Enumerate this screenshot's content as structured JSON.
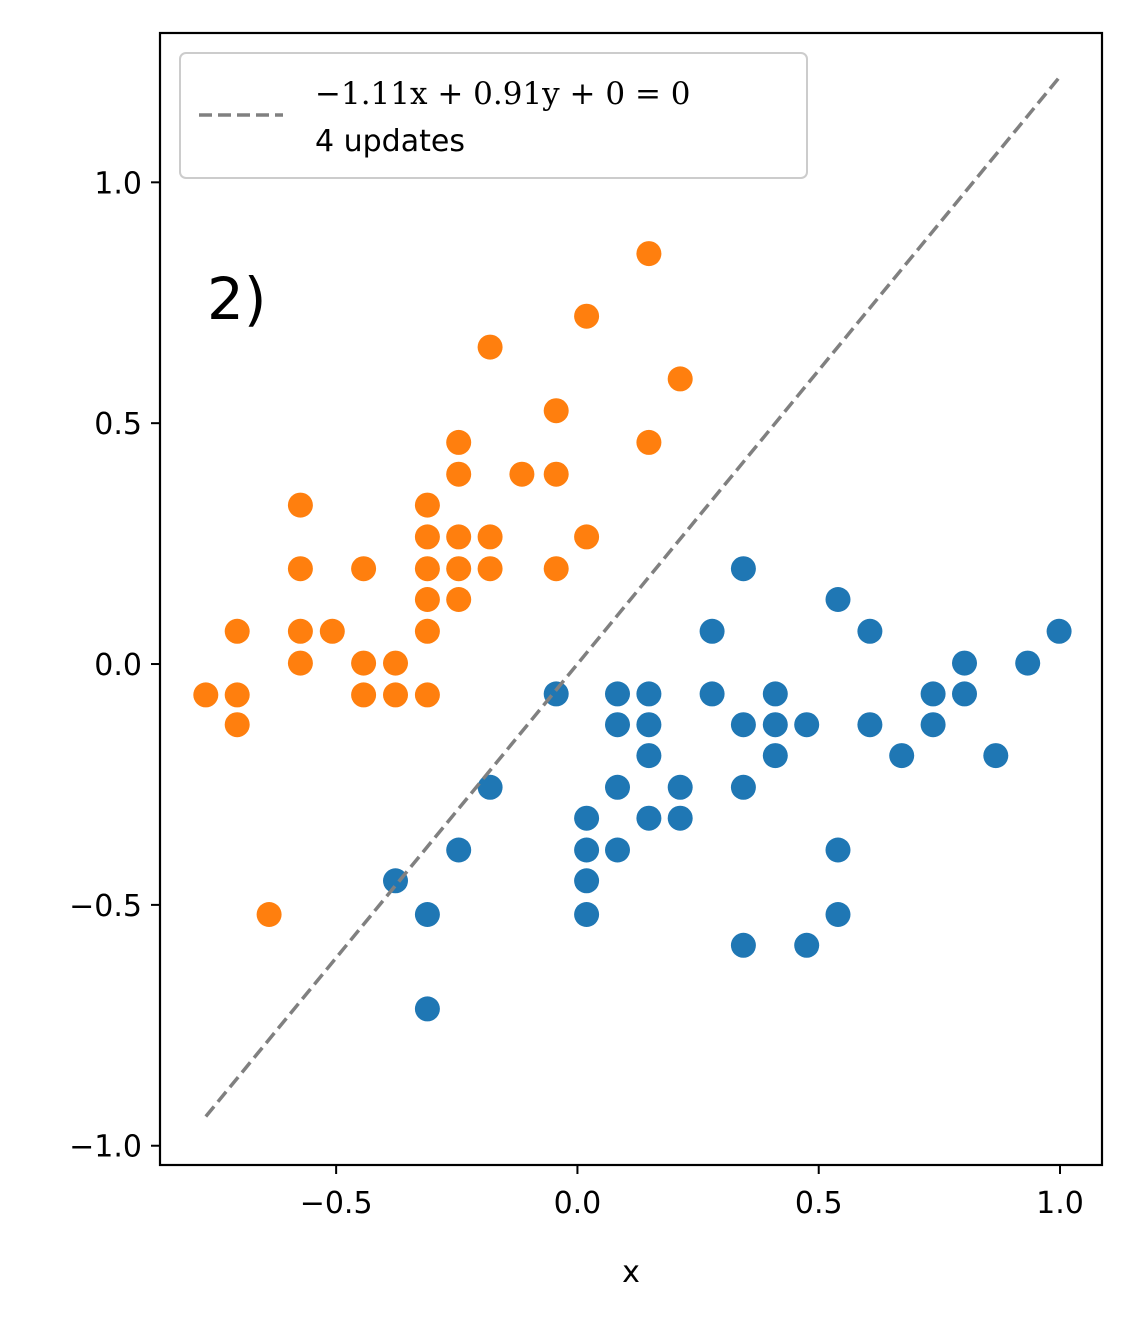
{
  "chart_data": {
    "type": "scatter",
    "title": "",
    "xlabel": "x",
    "ylabel": "",
    "xlim": [
      -0.865,
      1.087
    ],
    "ylim": [
      -1.04,
      1.31
    ],
    "xticks": [
      -0.5,
      0.0,
      0.5,
      1.0
    ],
    "yticks": [
      -1.0,
      -0.5,
      0.0,
      0.5,
      1.0
    ],
    "xtick_labels": [
      "−0.5",
      "0.0",
      "0.5",
      "1.0"
    ],
    "ytick_labels": [
      "−1.0",
      "−0.5",
      "0.0",
      "0.5",
      "1.0"
    ],
    "grid": false,
    "legend_position": "top-left",
    "annotation": "2)",
    "colors": {
      "orange": "#ff7f0e",
      "blue": "#1f77b4",
      "line": "#808080"
    },
    "series": [
      {
        "color": "orange",
        "points": [
          [
            0.148,
            0.852
          ],
          [
            0.019,
            0.722
          ],
          [
            -0.181,
            0.658
          ],
          [
            0.213,
            0.592
          ],
          [
            -0.044,
            0.526
          ],
          [
            0.148,
            0.46
          ],
          [
            -0.246,
            0.46
          ],
          [
            -0.246,
            0.394
          ],
          [
            -0.115,
            0.394
          ],
          [
            -0.044,
            0.394
          ],
          [
            -0.574,
            0.33
          ],
          [
            -0.311,
            0.33
          ],
          [
            -0.311,
            0.264
          ],
          [
            -0.246,
            0.264
          ],
          [
            -0.181,
            0.264
          ],
          [
            0.019,
            0.264
          ],
          [
            -0.574,
            0.198
          ],
          [
            -0.443,
            0.198
          ],
          [
            -0.311,
            0.198
          ],
          [
            -0.246,
            0.198
          ],
          [
            -0.181,
            0.198
          ],
          [
            -0.044,
            0.198
          ],
          [
            -0.311,
            0.134
          ],
          [
            -0.246,
            0.134
          ],
          [
            -0.705,
            0.068
          ],
          [
            -0.574,
            0.068
          ],
          [
            -0.508,
            0.068
          ],
          [
            -0.311,
            0.068
          ],
          [
            -0.574,
            0.002
          ],
          [
            -0.443,
            0.002
          ],
          [
            -0.377,
            0.002
          ],
          [
            -0.77,
            -0.064
          ],
          [
            -0.705,
            -0.064
          ],
          [
            -0.443,
            -0.064
          ],
          [
            -0.377,
            -0.064
          ],
          [
            -0.311,
            -0.064
          ],
          [
            -0.705,
            -0.126
          ],
          [
            -0.639,
            -0.52
          ]
        ]
      },
      {
        "color": "blue",
        "points": [
          [
            0.344,
            0.198
          ],
          [
            0.54,
            0.134
          ],
          [
            0.279,
            0.068
          ],
          [
            0.606,
            0.068
          ],
          [
            0.998,
            0.068
          ],
          [
            0.802,
            0.002
          ],
          [
            0.933,
            0.002
          ],
          [
            -0.044,
            -0.062
          ],
          [
            0.083,
            -0.062
          ],
          [
            0.148,
            -0.062
          ],
          [
            0.279,
            -0.062
          ],
          [
            0.41,
            -0.062
          ],
          [
            0.737,
            -0.062
          ],
          [
            0.802,
            -0.062
          ],
          [
            0.083,
            -0.126
          ],
          [
            0.148,
            -0.126
          ],
          [
            0.344,
            -0.126
          ],
          [
            0.41,
            -0.126
          ],
          [
            0.475,
            -0.126
          ],
          [
            0.606,
            -0.126
          ],
          [
            0.737,
            -0.126
          ],
          [
            0.148,
            -0.19
          ],
          [
            0.41,
            -0.19
          ],
          [
            0.672,
            -0.19
          ],
          [
            0.867,
            -0.19
          ],
          [
            -0.181,
            -0.256
          ],
          [
            0.083,
            -0.256
          ],
          [
            0.213,
            -0.256
          ],
          [
            0.344,
            -0.256
          ],
          [
            0.019,
            -0.32
          ],
          [
            0.148,
            -0.32
          ],
          [
            0.213,
            -0.32
          ],
          [
            -0.246,
            -0.386
          ],
          [
            0.019,
            -0.386
          ],
          [
            0.083,
            -0.386
          ],
          [
            0.54,
            -0.386
          ],
          [
            -0.377,
            -0.45
          ],
          [
            0.019,
            -0.45
          ],
          [
            -0.311,
            -0.52
          ],
          [
            0.019,
            -0.52
          ],
          [
            0.54,
            -0.52
          ],
          [
            0.344,
            -0.584
          ],
          [
            0.475,
            -0.584
          ],
          [
            -0.311,
            -0.716
          ]
        ]
      }
    ],
    "line": {
      "style": "dashed",
      "w1": -1.11,
      "w2": 0.91,
      "b": 0,
      "x_range": [
        -0.77,
        0.998
      ],
      "legend": {
        "equation": "−1.11x + 0.91y + 0 = 0",
        "updates": "4 updates"
      }
    }
  }
}
